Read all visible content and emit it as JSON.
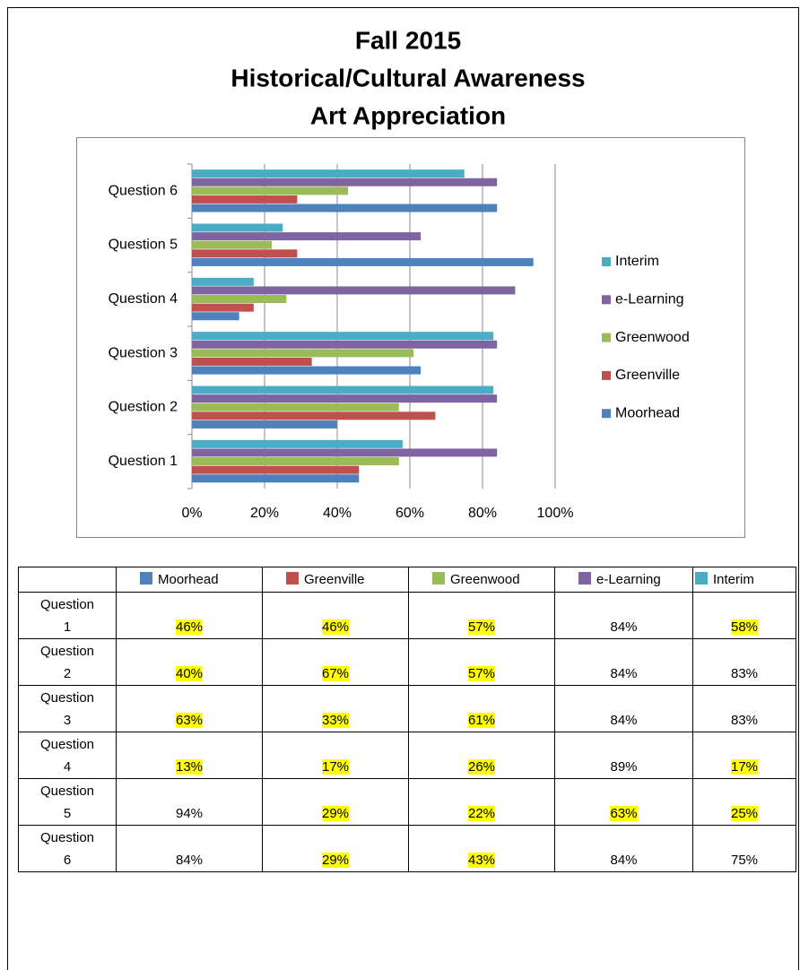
{
  "title": {
    "lines": [
      "Fall 2015",
      "Historical/Cultural Awareness",
      "Art Appreciation"
    ]
  },
  "chart_data": {
    "type": "bar",
    "orientation": "horizontal",
    "categories": [
      "Question 1",
      "Question 2",
      "Question 3",
      "Question 4",
      "Question 5",
      "Question 6"
    ],
    "series": [
      {
        "name": "Moorhead",
        "color": "#4f81bd",
        "values": [
          46,
          40,
          63,
          13,
          94,
          84
        ]
      },
      {
        "name": "Greenville",
        "color": "#c0504d",
        "values": [
          46,
          67,
          33,
          17,
          29,
          29
        ]
      },
      {
        "name": "Greenwood",
        "color": "#9bbb59",
        "values": [
          57,
          57,
          61,
          26,
          22,
          43
        ]
      },
      {
        "name": "e-Learning",
        "color": "#8064a2",
        "values": [
          84,
          84,
          84,
          89,
          63,
          84
        ]
      },
      {
        "name": "Interim",
        "color": "#4bacc6",
        "values": [
          58,
          83,
          83,
          17,
          25,
          75
        ]
      }
    ],
    "xlim": [
      0,
      100
    ],
    "xticks": [
      {
        "value": 0,
        "label": "0%"
      },
      {
        "value": 20,
        "label": "20%"
      },
      {
        "value": 40,
        "label": "40%"
      },
      {
        "value": 60,
        "label": "60%"
      },
      {
        "value": 80,
        "label": "80%"
      },
      {
        "value": 100,
        "label": "100%"
      }
    ],
    "grid": true,
    "legend": "right"
  },
  "table": {
    "rows": [
      [
        "46%",
        "46%",
        "57%",
        "84%",
        "58%"
      ],
      [
        "40%",
        "67%",
        "57%",
        "84%",
        "83%"
      ],
      [
        "63%",
        "33%",
        "61%",
        "84%",
        "83%"
      ],
      [
        "13%",
        "17%",
        "26%",
        "89%",
        "17%"
      ],
      [
        "94%",
        "29%",
        "22%",
        "63%",
        "25%"
      ],
      [
        "84%",
        "29%",
        "43%",
        "84%",
        "75%"
      ]
    ],
    "highlight": [
      [
        true,
        true,
        true,
        false,
        true
      ],
      [
        true,
        true,
        true,
        false,
        false
      ],
      [
        true,
        true,
        true,
        false,
        false
      ],
      [
        true,
        true,
        true,
        false,
        true
      ],
      [
        false,
        true,
        true,
        true,
        true
      ],
      [
        false,
        true,
        true,
        false,
        false
      ]
    ]
  }
}
